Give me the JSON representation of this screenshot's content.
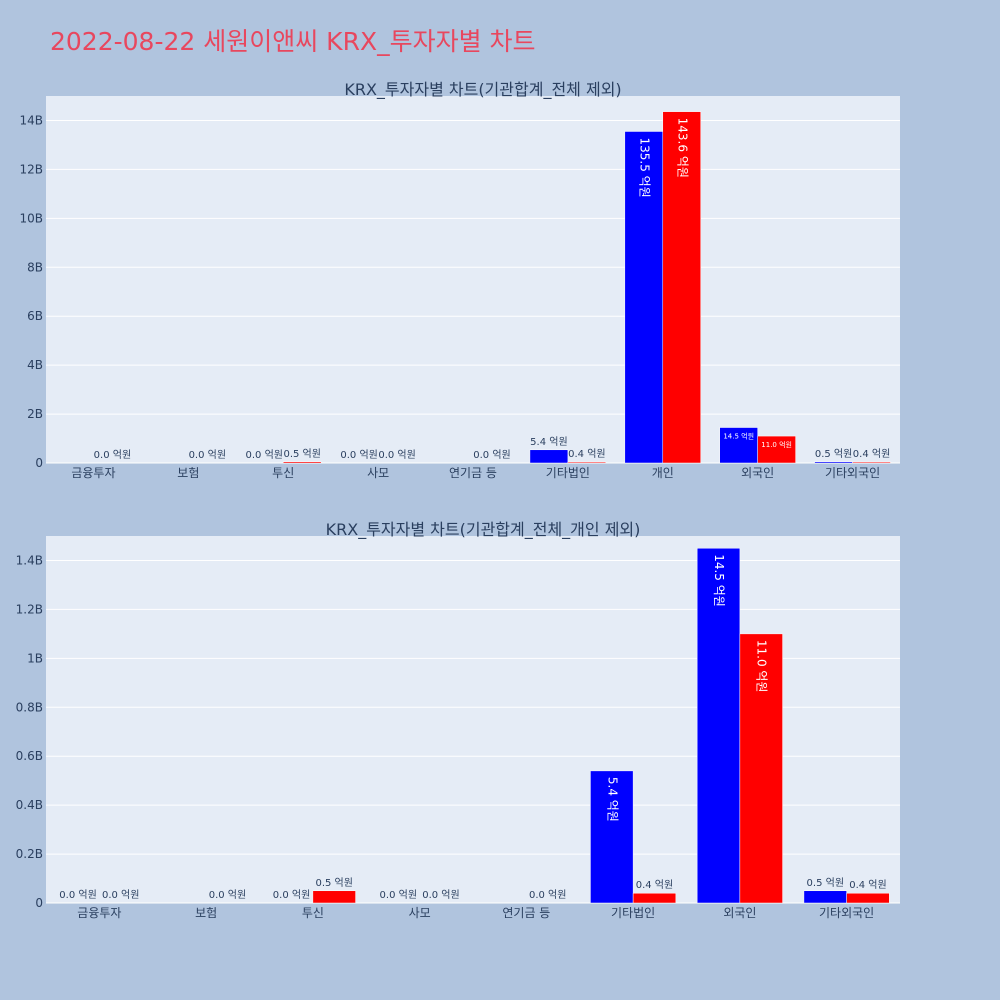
{
  "page": {
    "title": "2022-08-22 세원이앤씨 KRX_투자자별 차트",
    "background": "#b0c4de",
    "title_color": "#e8475e",
    "plot_background": "#e5ecf6"
  },
  "chart_data": [
    {
      "type": "bar",
      "title": "KRX_투자자별 차트(기관합계_전체 제외)",
      "categories": [
        "금융투자",
        "보험",
        "투신",
        "사모",
        "연기금 등",
        "기타법인",
        "개인",
        "외국인",
        "기타외국인"
      ],
      "series": [
        {
          "color": "#0000ff",
          "values": [
            0,
            0,
            0,
            0,
            0,
            540000000,
            13550000000,
            1450000000,
            50000000
          ],
          "labels": [
            "",
            "",
            "0.0 억원",
            "0.0 억원",
            "",
            "5.4 억원",
            "135.5 억원",
            "14.5 억원",
            "0.5 억원"
          ]
        },
        {
          "color": "#ff0000",
          "values": [
            0,
            0,
            50000000,
            0,
            0,
            40000000,
            14360000000,
            1100000000,
            40000000
          ],
          "labels": [
            "0.0 억원",
            "0.0 억원",
            "0.5 억원",
            "0.0 억원",
            "0.0 억원",
            "0.4 억원",
            "143.6 억원",
            "11.0 억원",
            "0.4 억원"
          ]
        }
      ],
      "ylim": [
        0,
        15000000000
      ],
      "yticks": [
        0,
        2000000000,
        4000000000,
        6000000000,
        8000000000,
        10000000000,
        12000000000,
        14000000000
      ],
      "ytick_labels": [
        "0",
        "2B",
        "4B",
        "6B",
        "8B",
        "10B",
        "12B",
        "14B"
      ],
      "grid": true
    },
    {
      "type": "bar",
      "title": "KRX_투자자별 차트(기관합계_전체_개인 제외)",
      "categories": [
        "금융투자",
        "보험",
        "투신",
        "사모",
        "연기금 등",
        "기타법인",
        "외국인",
        "기타외국인"
      ],
      "series": [
        {
          "color": "#0000ff",
          "values": [
            0,
            0,
            0,
            0,
            0,
            540000000,
            1450000000,
            50000000
          ],
          "labels": [
            "0.0 억원",
            "",
            "0.0 억원",
            "0.0 억원",
            "",
            "5.4 억원",
            "14.5 억원",
            "0.5 억원"
          ]
        },
        {
          "color": "#ff0000",
          "values": [
            0,
            0,
            50000000,
            0,
            0,
            40000000,
            1100000000,
            40000000
          ],
          "labels": [
            "0.0 억원",
            "0.0 억원",
            "0.5 억원",
            "0.0 억원",
            "0.0 억원",
            "0.4 억원",
            "11.0 억원",
            "0.4 억원"
          ]
        }
      ],
      "ylim": [
        0,
        1500000000
      ],
      "yticks": [
        0,
        200000000,
        400000000,
        600000000,
        800000000,
        1000000000,
        1200000000,
        1400000000
      ],
      "ytick_labels": [
        "0",
        "0.2B",
        "0.4B",
        "0.6B",
        "0.8B",
        "1B",
        "1.2B",
        "1.4B"
      ],
      "grid": true
    }
  ]
}
